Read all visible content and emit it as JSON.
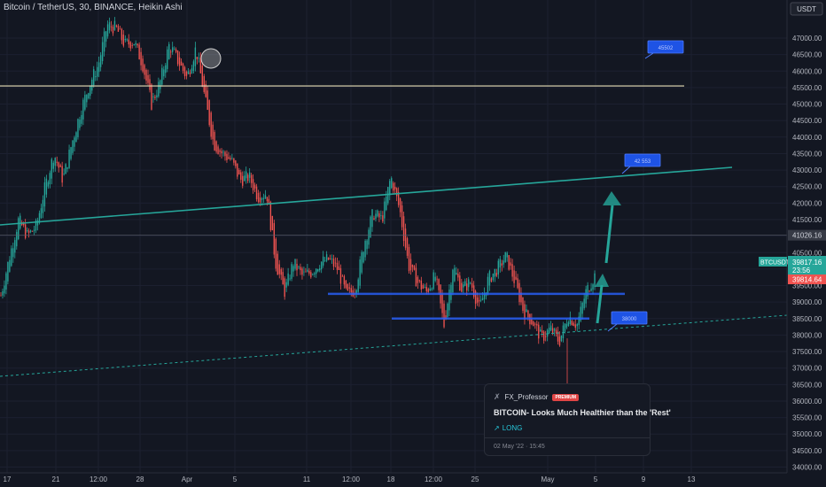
{
  "header": {
    "title": "Bitcoin / TetherUS, 30, BINANCE, Heikin Ashi"
  },
  "badges": {
    "symbol": "BTCUSDT",
    "price": "39817.16",
    "countdown": "23:56",
    "below": "39814.64",
    "level": "41026.16",
    "quote": "USDT"
  },
  "idea_card": {
    "author": "FX_Professor",
    "badge": "PREMIUM",
    "title": "BITCOIN- Looks Much Healthier than the 'Rest'",
    "direction": "LONG",
    "date": "02 May '22 · 15:45"
  },
  "chart_data": {
    "type": "candlestick",
    "y_ticks": [
      34000,
      34500,
      35000,
      35500,
      36000,
      36500,
      37000,
      37500,
      38000,
      38500,
      39000,
      39500,
      40000,
      40500,
      41000,
      41500,
      42000,
      42500,
      43000,
      43500,
      44000,
      44500,
      45000,
      45500,
      46000,
      46500,
      47000
    ],
    "y_tick_labels": [
      "34000.00",
      "34500.00",
      "35000.00",
      "35500.00",
      "36000.00",
      "36500.00",
      "37000.00",
      "37500.00",
      "38000.00",
      "38500.00",
      "39000.00",
      "39500.00",
      "40000.00",
      "40500.00",
      "41000.00",
      "41500.00",
      "42000.00",
      "42500.00",
      "43000.00",
      "43500.00",
      "44000.00",
      "44500.00",
      "45000.00",
      "45500.00",
      "46000.00",
      "46500.00",
      "47000.00"
    ],
    "x_ticks": [
      "17",
      "21",
      "12:00",
      "28",
      "Apr",
      "5",
      "11",
      "12:00",
      "18",
      "12:00",
      "25",
      "May",
      "5",
      "9",
      "13"
    ],
    "price_anchors": [
      [
        0,
        39200
      ],
      [
        1,
        40400
      ],
      [
        2,
        41500
      ],
      [
        3,
        41000
      ],
      [
        4,
        41300
      ],
      [
        5,
        42500
      ],
      [
        6,
        43500
      ],
      [
        7,
        42700
      ],
      [
        8,
        43800
      ],
      [
        9,
        44800
      ],
      [
        10,
        45600
      ],
      [
        11,
        46200
      ],
      [
        12,
        47400
      ],
      [
        13,
        47300
      ],
      [
        14,
        46800
      ],
      [
        15,
        46900
      ],
      [
        16,
        46200
      ],
      [
        17,
        45000
      ],
      [
        18,
        45700
      ],
      [
        19,
        46800
      ],
      [
        20,
        46300
      ],
      [
        21,
        45800
      ],
      [
        22,
        46700
      ],
      [
        23,
        45200
      ],
      [
        24,
        43800
      ],
      [
        25,
        43500
      ],
      [
        26,
        43300
      ],
      [
        27,
        42700
      ],
      [
        28,
        42800
      ],
      [
        29,
        42200
      ],
      [
        30,
        42300
      ],
      [
        31,
        40200
      ],
      [
        32,
        39300
      ],
      [
        33,
        40200
      ],
      [
        34,
        39800
      ],
      [
        35,
        39900
      ],
      [
        36,
        40200
      ],
      [
        37,
        40300
      ],
      [
        38,
        40000
      ],
      [
        39,
        39200
      ],
      [
        40,
        39400
      ],
      [
        41,
        40800
      ],
      [
        42,
        41700
      ],
      [
        43,
        41500
      ],
      [
        44,
        42800
      ],
      [
        45,
        41800
      ],
      [
        46,
        40100
      ],
      [
        47,
        39600
      ],
      [
        48,
        39300
      ],
      [
        49,
        39800
      ],
      [
        50,
        38300
      ],
      [
        51,
        40100
      ],
      [
        52,
        39400
      ],
      [
        53,
        39600
      ],
      [
        54,
        38800
      ],
      [
        55,
        39700
      ],
      [
        56,
        40000
      ],
      [
        57,
        40400
      ],
      [
        58,
        39600
      ],
      [
        59,
        38700
      ],
      [
        60,
        38400
      ],
      [
        61,
        37900
      ],
      [
        62,
        38200
      ],
      [
        63,
        37800
      ],
      [
        64,
        38600
      ],
      [
        65,
        38300
      ],
      [
        66,
        39300
      ],
      [
        67,
        39800
      ]
    ],
    "candle_count": 340,
    "current_price": 39817.16,
    "horizontal_levels": [
      {
        "price": 45550,
        "color": "#e8e0b8",
        "label": "45502"
      },
      {
        "price": 39250,
        "color": "#2962ff",
        "label": ""
      },
      {
        "price": 38500,
        "color": "#2962ff",
        "label": ""
      },
      {
        "price": 41026.16,
        "color": "#5d606b",
        "label": "41026.16"
      }
    ],
    "trendlines": [
      {
        "from": [
          0,
          40500
        ],
        "to": [
          1,
          42500
        ],
        "color": "#26a69a",
        "style": "solid"
      },
      {
        "from": [
          0,
          36500
        ],
        "to": [
          1,
          38400
        ],
        "color": "#26a69a",
        "style": "dashed"
      }
    ],
    "annotations": [
      {
        "text": "45502",
        "price": 45700
      },
      {
        "text": "42 553",
        "price": 42800
      },
      {
        "text": "38000",
        "price": 38100
      }
    ]
  }
}
